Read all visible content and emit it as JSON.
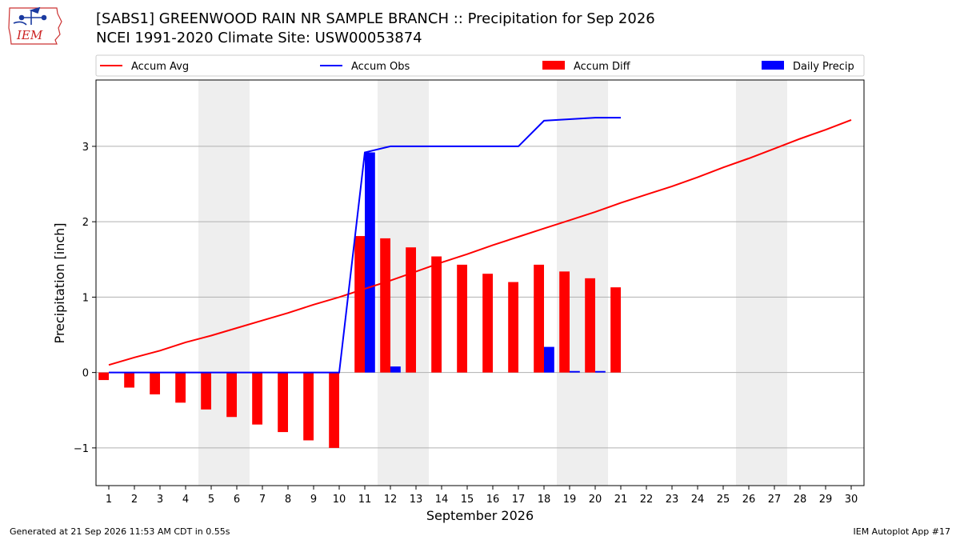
{
  "header": {
    "title_line1": "[SABS1] GREENWOOD RAIN NR SAMPLE BRANCH :: Precipitation for Sep 2026",
    "title_line2": "NCEI 1991-2020 Climate Site: USW00053874"
  },
  "logo": {
    "text": "IEM"
  },
  "footer": {
    "left": "Generated at 21 Sep 2026 11:53 AM CDT in 0.55s",
    "right": "IEM Autoplot App #17"
  },
  "colors": {
    "avg": "#ff0000",
    "obs": "#0000ff",
    "diff": "#ff0000",
    "daily": "#0000ff",
    "weekend_shade": "#eeeeee",
    "grid": "#b0b0b0"
  },
  "chart_data": {
    "type": "bar",
    "xlabel": "September 2026",
    "ylabel": "Precipitation [inch]",
    "ylim": [
      -1.5,
      3.88
    ],
    "yticks": [
      -1,
      0,
      1,
      2,
      3
    ],
    "ytick_labels": [
      "−1",
      "0",
      "1",
      "2",
      "3"
    ],
    "days": [
      1,
      2,
      3,
      4,
      5,
      6,
      7,
      8,
      9,
      10,
      11,
      12,
      13,
      14,
      15,
      16,
      17,
      18,
      19,
      20,
      21,
      22,
      23,
      24,
      25,
      26,
      27,
      28,
      29,
      30
    ],
    "shaded_days": [
      5,
      6,
      12,
      13,
      19,
      20,
      26,
      27
    ],
    "grid": "horizontal",
    "legend_position": "top",
    "legend": [
      {
        "label": "Accum Avg",
        "kind": "line",
        "color": "#ff0000"
      },
      {
        "label": "Accum Obs",
        "kind": "line",
        "color": "#0000ff"
      },
      {
        "label": "Accum Diff",
        "kind": "bar",
        "color": "#ff0000"
      },
      {
        "label": "Daily Precip",
        "kind": "bar",
        "color": "#0000ff"
      }
    ],
    "series": [
      {
        "name": "Accum Avg",
        "type": "line",
        "x": [
          1,
          2,
          3,
          4,
          5,
          6,
          7,
          8,
          9,
          10,
          11,
          12,
          13,
          14,
          15,
          16,
          17,
          18,
          19,
          20,
          21,
          22,
          23,
          24,
          25,
          26,
          27,
          28,
          29,
          30
        ],
        "values": [
          0.1,
          0.2,
          0.29,
          0.4,
          0.49,
          0.59,
          0.69,
          0.79,
          0.9,
          1.0,
          1.11,
          1.22,
          1.34,
          1.46,
          1.57,
          1.69,
          1.8,
          1.91,
          2.02,
          2.13,
          2.25,
          2.36,
          2.47,
          2.59,
          2.72,
          2.84,
          2.97,
          3.1,
          3.22,
          3.35
        ]
      },
      {
        "name": "Accum Obs",
        "type": "line",
        "x": [
          1,
          2,
          3,
          4,
          5,
          6,
          7,
          8,
          9,
          10,
          11,
          12,
          13,
          14,
          15,
          16,
          17,
          18,
          19,
          20,
          21
        ],
        "values": [
          0,
          0,
          0,
          0,
          0,
          0,
          0,
          0,
          0,
          0,
          2.92,
          3.0,
          3.0,
          3.0,
          3.0,
          3.0,
          3.0,
          3.34,
          3.36,
          3.38,
          3.38
        ]
      },
      {
        "name": "Accum Diff",
        "type": "bar",
        "x": [
          1,
          2,
          3,
          4,
          5,
          6,
          7,
          8,
          9,
          10,
          11,
          12,
          13,
          14,
          15,
          16,
          17,
          18,
          19,
          20,
          21
        ],
        "values": [
          -0.1,
          -0.2,
          -0.29,
          -0.4,
          -0.49,
          -0.59,
          -0.69,
          -0.79,
          -0.9,
          -1.0,
          1.81,
          1.78,
          1.66,
          1.54,
          1.43,
          1.31,
          1.2,
          1.43,
          1.34,
          1.25,
          1.13
        ]
      },
      {
        "name": "Daily Precip",
        "type": "bar",
        "x": [
          1,
          2,
          3,
          4,
          5,
          6,
          7,
          8,
          9,
          10,
          11,
          12,
          13,
          14,
          15,
          16,
          17,
          18,
          19,
          20,
          21
        ],
        "values": [
          0,
          0,
          0,
          0,
          0,
          0,
          0,
          0,
          0,
          0,
          2.92,
          0.08,
          0,
          0,
          0,
          0,
          0,
          0.34,
          0.02,
          0.02,
          0
        ]
      }
    ]
  }
}
